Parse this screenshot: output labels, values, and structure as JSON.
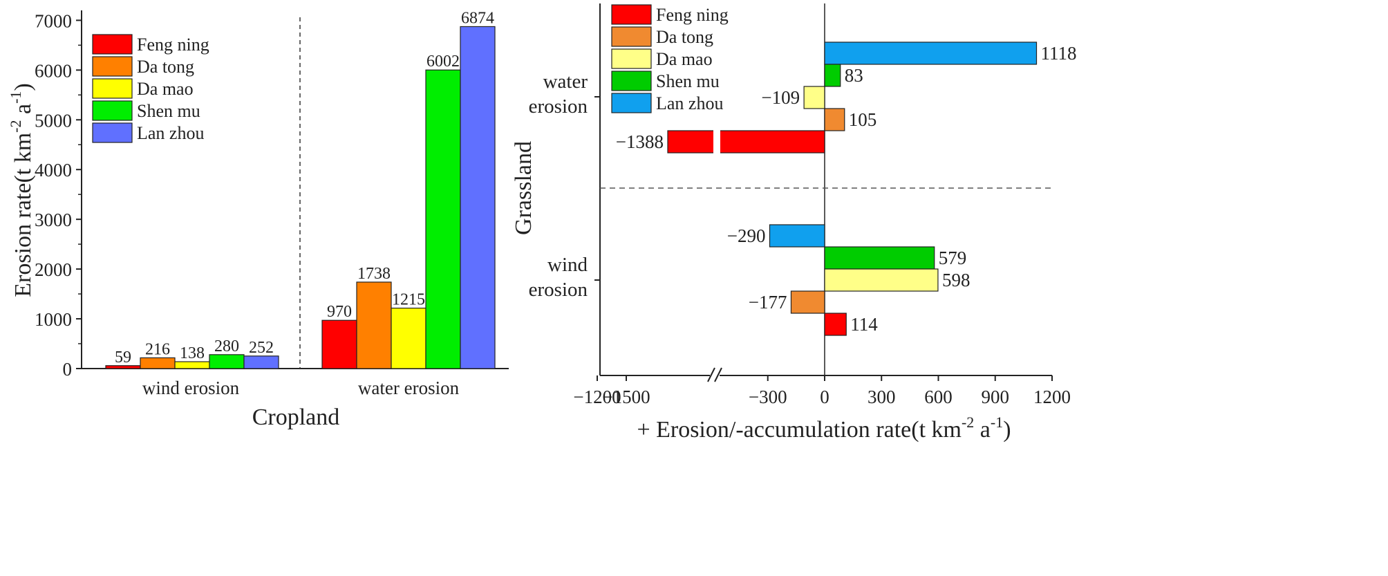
{
  "chart_data": [
    {
      "type": "bar",
      "title": "",
      "xlabel": "Cropland",
      "ylabel_main": "Erosion rate(t km",
      "ylabel_sup1": "-2",
      "ylabel_mid": " a",
      "ylabel_sup2": "-1",
      "ylabel_end": ")",
      "ylim": [
        0,
        7200
      ],
      "yticks": [
        0,
        1000,
        2000,
        3000,
        4000,
        5000,
        6000,
        7000
      ],
      "categories": [
        "wind erosion",
        "water erosion"
      ],
      "legend_position": "top-left",
      "series": [
        {
          "name": "Feng ning",
          "color": "#ff0000",
          "values": [
            59,
            970
          ]
        },
        {
          "name": "Da tong",
          "color": "#ff8000",
          "values": [
            216,
            1738
          ]
        },
        {
          "name": "Da mao",
          "color": "#ffff00",
          "values": [
            138,
            1215
          ]
        },
        {
          "name": "Shen mu",
          "color": "#00ee00",
          "values": [
            280,
            6002
          ]
        },
        {
          "name": "Lan zhou",
          "color": "#6070ff",
          "values": [
            252,
            6874
          ]
        }
      ]
    },
    {
      "type": "bar",
      "orientation": "horizontal",
      "title": "",
      "ylabel": "Grassland",
      "xlabel_main": "+ Erosion/-accumulation rate(t km",
      "xlabel_sup1": "-2",
      "xlabel_mid": " a",
      "xlabel_sup2": "-1",
      "xlabel_end": ")",
      "axis_break": [
        -1388,
        -1200
      ],
      "xticks": [
        -1500,
        -1200,
        -300,
        0,
        300,
        600,
        900,
        1200
      ],
      "xtick_labels": [
        "−1500",
        "−1200",
        "−300",
        "0",
        "300",
        "600",
        "900",
        "1200"
      ],
      "categories": [
        [
          "water",
          "erosion"
        ],
        [
          "wind",
          "erosion"
        ]
      ],
      "legend_position": "top-left",
      "series": [
        {
          "name": "Feng ning",
          "color": "#ff0000",
          "values": [
            -1388,
            114
          ],
          "labels": [
            "−1388",
            "114"
          ]
        },
        {
          "name": "Da tong",
          "color": "#f08a30",
          "values": [
            105,
            -177
          ],
          "labels": [
            "105",
            "−177"
          ]
        },
        {
          "name": "Da mao",
          "color": "#ffff88",
          "values": [
            -109,
            598
          ],
          "labels": [
            "−109",
            "598"
          ]
        },
        {
          "name": "Shen mu",
          "color": "#00cc00",
          "values": [
            83,
            579
          ],
          "labels": [
            "83",
            "579"
          ]
        },
        {
          "name": "Lan zhou",
          "color": "#10a0ee",
          "values": [
            1118,
            -290
          ],
          "labels": [
            "1118",
            "−290"
          ]
        }
      ]
    }
  ]
}
